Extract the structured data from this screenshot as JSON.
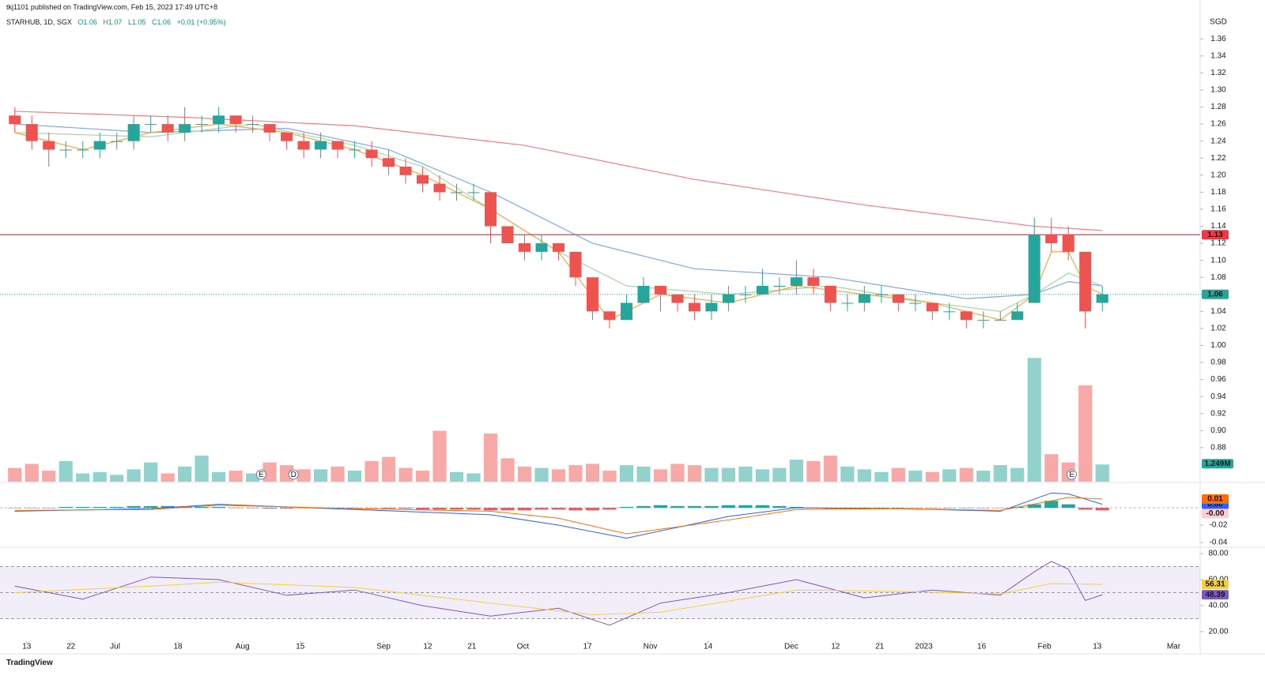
{
  "header": {
    "publisher": "tkj1101 published on TradingView.com, Feb 15, 2023 17:49 UTC+8",
    "symbol": "STARHUB, 1D, SGX",
    "ohlc": [
      "O1.06",
      "H1.07",
      "L1.05",
      "C1.06"
    ],
    "change": "+0.01 (+0.95%)"
  },
  "footer": "TradingView",
  "chart_data": [
    {
      "type": "candlestick",
      "currency": "SGD",
      "colors": {
        "up": "#26a69a",
        "down": "#ef5350"
      },
      "xlim": [
        -0.5,
        69.76
      ],
      "xticks": [
        {
          "value": 0.7,
          "label": "13"
        },
        {
          "value": 3.3,
          "label": "22"
        },
        {
          "value": 5.9,
          "label": "Jul"
        },
        {
          "value": 9.6,
          "label": "18"
        },
        {
          "value": 13.4,
          "label": "Aug"
        },
        {
          "value": 16.8,
          "label": "15"
        },
        {
          "value": 21.7,
          "label": "Sep"
        },
        {
          "value": 24.3,
          "label": "12"
        },
        {
          "value": 26.9,
          "label": "21"
        },
        {
          "value": 29.9,
          "label": "Oct"
        },
        {
          "value": 33.7,
          "label": "17"
        },
        {
          "value": 37.4,
          "label": "Nov"
        },
        {
          "value": 40.8,
          "label": "14"
        },
        {
          "value": 45.7,
          "label": "Dec"
        },
        {
          "value": 48.3,
          "label": "12"
        },
        {
          "value": 50.9,
          "label": "21"
        },
        {
          "value": 53.5,
          "label": "2023"
        },
        {
          "value": 56.9,
          "label": "16"
        },
        {
          "value": 60.6,
          "label": "Feb"
        },
        {
          "value": 63.7,
          "label": "13"
        },
        {
          "value": 68.2,
          "label": "Mar"
        }
      ],
      "ylim": [
        0.84,
        1.389
      ],
      "yticks": [
        {
          "value": 0.88,
          "label": "0.88"
        },
        {
          "value": 0.9,
          "label": "0.90"
        },
        0.92,
        0.94,
        0.96,
        0.98,
        {
          "value": 1.0,
          "label": "1.00"
        },
        1.02,
        1.04,
        1.06,
        1.08,
        {
          "value": 1.1,
          "label": "1.10"
        },
        1.12,
        1.14,
        1.16,
        1.18,
        {
          "value": 1.2,
          "label": "1.20"
        },
        1.22,
        1.24,
        1.26,
        1.28,
        {
          "value": 1.3,
          "label": "1.30"
        },
        1.32,
        1.34,
        1.36
      ],
      "open": [
        1.27,
        1.26,
        1.24,
        1.23,
        1.23,
        1.23,
        1.24,
        1.24,
        1.26,
        1.26,
        1.25,
        1.26,
        1.26,
        1.27,
        1.26,
        1.26,
        1.25,
        1.24,
        1.23,
        1.24,
        1.23,
        1.23,
        1.22,
        1.21,
        1.2,
        1.19,
        1.18,
        1.18,
        1.18,
        1.14,
        1.12,
        1.11,
        1.12,
        1.11,
        1.08,
        1.04,
        1.03,
        1.05,
        1.07,
        1.06,
        1.05,
        1.04,
        1.05,
        1.06,
        1.06,
        1.07,
        1.07,
        1.08,
        1.07,
        1.05,
        1.05,
        1.06,
        1.06,
        1.05,
        1.05,
        1.04,
        1.04,
        1.03,
        1.03,
        1.03,
        1.05,
        1.13,
        1.13,
        1.11,
        1.05
      ],
      "high": [
        1.28,
        1.27,
        1.25,
        1.24,
        1.24,
        1.25,
        1.25,
        1.27,
        1.27,
        1.27,
        1.28,
        1.27,
        1.28,
        1.27,
        1.27,
        1.26,
        1.25,
        1.25,
        1.25,
        1.24,
        1.24,
        1.24,
        1.23,
        1.22,
        1.21,
        1.2,
        1.19,
        1.19,
        1.18,
        1.14,
        1.13,
        1.13,
        1.12,
        1.11,
        1.08,
        1.04,
        1.06,
        1.08,
        1.07,
        1.06,
        1.06,
        1.06,
        1.07,
        1.07,
        1.09,
        1.08,
        1.1,
        1.09,
        1.07,
        1.06,
        1.07,
        1.07,
        1.06,
        1.06,
        1.05,
        1.05,
        1.04,
        1.04,
        1.04,
        1.05,
        1.15,
        1.15,
        1.14,
        1.11,
        1.07
      ],
      "low": [
        1.25,
        1.23,
        1.21,
        1.22,
        1.22,
        1.22,
        1.23,
        1.23,
        1.25,
        1.24,
        1.24,
        1.25,
        1.25,
        1.25,
        1.25,
        1.24,
        1.23,
        1.22,
        1.22,
        1.22,
        1.22,
        1.21,
        1.2,
        1.19,
        1.18,
        1.17,
        1.17,
        1.17,
        1.12,
        1.12,
        1.1,
        1.1,
        1.1,
        1.07,
        1.03,
        1.02,
        1.03,
        1.05,
        1.04,
        1.04,
        1.03,
        1.03,
        1.04,
        1.05,
        1.06,
        1.06,
        1.06,
        1.06,
        1.04,
        1.04,
        1.04,
        1.05,
        1.04,
        1.04,
        1.03,
        1.03,
        1.02,
        1.02,
        1.03,
        1.03,
        1.05,
        1.11,
        1.1,
        1.02,
        1.04
      ],
      "close": [
        1.26,
        1.24,
        1.23,
        1.23,
        1.23,
        1.24,
        1.24,
        1.26,
        1.26,
        1.25,
        1.26,
        1.26,
        1.27,
        1.26,
        1.26,
        1.25,
        1.24,
        1.23,
        1.24,
        1.23,
        1.23,
        1.22,
        1.21,
        1.2,
        1.19,
        1.18,
        1.18,
        1.18,
        1.14,
        1.12,
        1.11,
        1.12,
        1.11,
        1.08,
        1.04,
        1.03,
        1.05,
        1.07,
        1.06,
        1.05,
        1.04,
        1.05,
        1.06,
        1.06,
        1.07,
        1.07,
        1.08,
        1.07,
        1.05,
        1.05,
        1.06,
        1.06,
        1.05,
        1.05,
        1.04,
        1.04,
        1.03,
        1.03,
        1.03,
        1.04,
        1.13,
        1.12,
        1.11,
        1.04,
        1.06
      ],
      "moving_averages": [
        {
          "color": "#f77c80",
          "x": [
            0,
            10,
            20,
            30,
            40,
            50,
            60,
            64
          ],
          "values": [
            1.275,
            1.268,
            1.258,
            1.235,
            1.195,
            1.165,
            1.14,
            1.135
          ]
        },
        {
          "color": "#7fa8e8",
          "x": [
            0,
            8,
            16,
            22,
            28,
            34,
            40,
            48,
            56,
            60,
            62,
            64
          ],
          "values": [
            1.26,
            1.25,
            1.255,
            1.23,
            1.18,
            1.12,
            1.09,
            1.08,
            1.055,
            1.06,
            1.075,
            1.07
          ]
        },
        {
          "color": "#a5d6a7",
          "x": [
            0,
            8,
            14,
            20,
            24,
            28,
            32,
            36,
            42,
            48,
            54,
            58,
            60,
            62,
            64
          ],
          "values": [
            1.25,
            1.245,
            1.26,
            1.235,
            1.21,
            1.16,
            1.11,
            1.07,
            1.06,
            1.07,
            1.05,
            1.04,
            1.06,
            1.085,
            1.07
          ]
        },
        {
          "color": "#f5a742",
          "x": [
            0,
            4,
            8,
            12,
            16,
            20,
            24,
            28,
            32,
            35,
            38,
            42,
            46,
            50,
            54,
            58,
            60,
            61,
            62,
            63,
            64
          ],
          "values": [
            1.25,
            1.23,
            1.25,
            1.26,
            1.25,
            1.23,
            1.2,
            1.16,
            1.11,
            1.03,
            1.06,
            1.05,
            1.07,
            1.06,
            1.05,
            1.03,
            1.06,
            1.11,
            1.11,
            1.07,
            1.06
          ]
        }
      ],
      "levels": [
        {
          "value": 1.13,
          "label": "1.13",
          "color": "#f23645"
        }
      ],
      "last_price": {
        "value": 1.06,
        "label": "1.06",
        "color": "#26a69a"
      },
      "events": [
        {
          "x": 14.5,
          "label": "E"
        },
        {
          "x": 16.4,
          "label": "D"
        },
        {
          "x": 62.2,
          "label": "E"
        }
      ],
      "volume": {
        "ylim": [
          0,
          34
        ],
        "last_label": "1.249M",
        "values": [
          1.0,
          1.3,
          0.8,
          1.5,
          0.6,
          0.7,
          0.5,
          0.9,
          1.4,
          0.6,
          1.1,
          1.9,
          0.7,
          0.8,
          0.6,
          1.4,
          1.2,
          0.9,
          0.9,
          1.1,
          0.8,
          1.5,
          1.8,
          1.0,
          0.8,
          3.7,
          0.7,
          0.6,
          3.5,
          1.7,
          1.1,
          1.0,
          0.9,
          1.2,
          1.3,
          0.8,
          1.2,
          1.1,
          0.9,
          1.3,
          1.2,
          1.0,
          1.0,
          1.1,
          0.9,
          1.0,
          1.6,
          1.5,
          1.9,
          1.1,
          0.9,
          0.7,
          1.0,
          0.8,
          0.7,
          0.9,
          1.0,
          0.8,
          1.2,
          1.0,
          9.0,
          2.0,
          1.4,
          7.0,
          1.249
        ]
      }
    },
    {
      "type": "macd",
      "ylim": [
        -0.0445,
        0.0282
      ],
      "yticks": [
        -0.02,
        -0.04
      ],
      "series": [
        {
          "color": "#2962ff",
          "x": [
            0,
            8,
            12,
            20,
            28,
            32,
            36,
            42,
            46,
            52,
            58,
            61,
            62,
            64
          ],
          "values": [
            -0.004,
            -0.001,
            0.004,
            -0.002,
            -0.008,
            -0.02,
            -0.035,
            -0.01,
            0.0,
            -0.001,
            -0.004,
            0.017,
            0.016,
            0.004
          ],
          "last_label": "0.00"
        },
        {
          "color": "#ff6d00",
          "x": [
            0,
            8,
            12,
            20,
            28,
            32,
            36,
            42,
            46,
            52,
            58,
            61,
            62,
            64
          ],
          "values": [
            -0.003,
            -0.002,
            0.003,
            -0.001,
            -0.004,
            -0.012,
            -0.03,
            -0.014,
            -0.002,
            -0.001,
            -0.003,
            0.008,
            0.012,
            0.01
          ],
          "last_label": "0.01"
        }
      ],
      "histogram": {
        "colors": {
          "up": "#26a69a",
          "down": "#ff5252"
        },
        "label_color": "#ffcdd2",
        "last_label": "-0.00",
        "values": [
          0,
          0,
          0,
          0.001,
          0.001,
          0.001,
          0.001,
          0.002,
          0.002,
          0.002,
          0.001,
          0.001,
          0.001,
          0,
          0,
          -0.001,
          -0.001,
          0,
          0,
          0,
          0,
          0,
          -0.001,
          -0.001,
          -0.002,
          -0.002,
          -0.002,
          -0.002,
          -0.003,
          -0.003,
          -0.003,
          -0.002,
          -0.002,
          -0.003,
          -0.003,
          -0.002,
          0.001,
          0.002,
          0.003,
          0.002,
          0.002,
          0.002,
          0.003,
          0.003,
          0.003,
          0.002,
          0.001,
          0,
          -0.001,
          -0.001,
          0,
          0,
          0,
          0,
          0,
          0,
          0,
          0,
          0,
          0.001,
          0.004,
          0.008,
          0.004,
          -0.002,
          -0.003
        ]
      }
    },
    {
      "type": "rsi",
      "ylim": [
        12.73,
        84.24
      ],
      "yticks": [
        {
          "value": 80,
          "label": "80.00"
        },
        {
          "value": 60,
          "label": "60.00"
        },
        {
          "value": 40,
          "label": "40.00"
        },
        {
          "value": 20,
          "label": "20.00"
        }
      ],
      "band": [
        30,
        70
      ],
      "levels": [
        70,
        50,
        30
      ],
      "series": [
        {
          "color": "#7e57c2",
          "x": [
            0,
            4,
            8,
            12,
            16,
            20,
            24,
            28,
            32,
            35,
            38,
            42,
            46,
            50,
            54,
            58,
            60,
            61,
            62,
            63,
            64
          ],
          "values": [
            55,
            45,
            62,
            60,
            48,
            52,
            40,
            32,
            38,
            25,
            42,
            50,
            60,
            46,
            52,
            48,
            66,
            74,
            68,
            44,
            48.39
          ],
          "last_label": "48.39"
        },
        {
          "color": "#f5d03b",
          "x": [
            0,
            8,
            12,
            20,
            28,
            34,
            38,
            46,
            52,
            58,
            61,
            64
          ],
          "values": [
            50,
            55,
            58,
            54,
            42,
            33,
            35,
            52,
            51,
            49,
            57,
            56.31
          ],
          "last_label": "56.31"
        }
      ]
    }
  ]
}
